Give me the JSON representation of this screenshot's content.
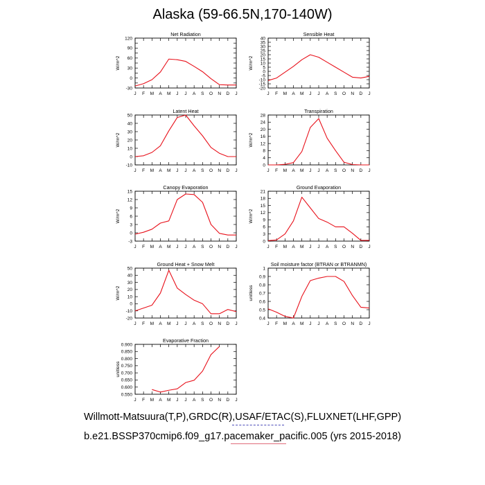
{
  "title": "Alaska (59-66.5N,170-140W)",
  "footer_line1": "Willmott-Matsuura(T,P),GRDC(R),USAF/ETAC(S),FLUXNET(LHF,GPP)",
  "footer_line2": "b.e21.BSSP370cmip6.f09_g17.pacemaker_pacific.005 (yrs 2015-2018)",
  "line_color": "#e8101a",
  "months": [
    "J",
    "F",
    "M",
    "A",
    "M",
    "J",
    "J",
    "A",
    "S",
    "O",
    "N",
    "D",
    "J"
  ],
  "chart_data": [
    {
      "type": "line",
      "title": "Net Radiation",
      "ylabel": "W/m^2",
      "ylim": [
        -30,
        120
      ],
      "yticks": [
        -30,
        -15,
        0,
        15,
        30,
        45,
        60,
        75,
        90,
        105,
        120
      ],
      "yticklabels": [
        "-30",
        "",
        "0",
        "",
        "30",
        "",
        "60",
        "",
        "90",
        "",
        "120"
      ],
      "values": [
        -24,
        -17,
        -5,
        18,
        57,
        55,
        50,
        35,
        19,
        -2,
        -20,
        -21,
        -21
      ]
    },
    {
      "type": "line",
      "title": "Sensible Heat",
      "ylabel": "W/m^2",
      "ylim": [
        -20,
        40
      ],
      "yticks": [
        -20,
        -15,
        -10,
        -5,
        0,
        5,
        10,
        15,
        20,
        25,
        30,
        35,
        40
      ],
      "yticklabels": [
        "-20",
        "-15",
        "-10",
        "-5",
        "0",
        "5",
        "10",
        "15",
        "20",
        "25",
        "30",
        "35",
        "40"
      ],
      "values": [
        -11,
        -8,
        -1,
        6,
        14,
        20,
        17,
        11,
        5,
        -1,
        -7,
        -8,
        -6
      ]
    },
    {
      "type": "line",
      "title": "Latent Heat",
      "ylabel": "W/m^2",
      "ylim": [
        -10,
        50
      ],
      "yticks": [
        -10,
        0,
        10,
        20,
        30,
        40,
        50
      ],
      "yticklabels": [
        "-10",
        "0",
        "10",
        "20",
        "30",
        "40",
        "50"
      ],
      "values": [
        0,
        1,
        5,
        13,
        31,
        47,
        50,
        37,
        25,
        11,
        4,
        0,
        0
      ]
    },
    {
      "type": "line",
      "title": "Transpiration",
      "ylabel": "W/m^2",
      "ylim": [
        0,
        28
      ],
      "yticks": [
        0,
        4,
        8,
        12,
        16,
        20,
        24,
        28
      ],
      "yticklabels": [
        "0",
        "4",
        "8",
        "12",
        "16",
        "20",
        "24",
        "28"
      ],
      "values": [
        0,
        0,
        0.3,
        1.3,
        7.5,
        21,
        26,
        15,
        8,
        1.5,
        0.2,
        0,
        0
      ]
    },
    {
      "type": "line",
      "title": "Canopy Evaporation",
      "ylabel": "W/m^2",
      "ylim": [
        -3,
        15
      ],
      "yticks": [
        -3,
        0,
        3,
        6,
        9,
        12,
        15
      ],
      "yticklabels": [
        "-3",
        "0",
        "3",
        "6",
        "9",
        "12",
        "15"
      ],
      "values": [
        -0.5,
        0.2,
        1.3,
        3.5,
        4.3,
        12,
        14,
        13.8,
        11,
        3,
        -0.2,
        -0.8,
        -0.8
      ]
    },
    {
      "type": "line",
      "title": "Ground Evaporation",
      "ylabel": "W/m^2",
      "ylim": [
        0,
        21
      ],
      "yticks": [
        0,
        3,
        6,
        9,
        12,
        15,
        18,
        21
      ],
      "yticklabels": [
        "0",
        "3",
        "6",
        "9",
        "12",
        "15",
        "18",
        "21"
      ],
      "values": [
        0.2,
        0.5,
        3,
        8.5,
        18.5,
        14,
        9.5,
        8,
        6,
        6,
        3.3,
        0.3,
        0.3
      ]
    },
    {
      "type": "line",
      "title": "Ground Heat + Snow Melt",
      "ylabel": "W/m^2",
      "ylim": [
        -20,
        50
      ],
      "yticks": [
        -20,
        -10,
        0,
        10,
        20,
        30,
        40,
        50
      ],
      "yticklabels": [
        "-20",
        "-10",
        "0",
        "10",
        "20",
        "30",
        "40",
        "50"
      ],
      "values": [
        -10,
        -6,
        -2,
        15,
        47,
        22,
        13,
        5,
        0,
        -14,
        -14,
        -8,
        -11
      ]
    },
    {
      "type": "line",
      "title": "Soil moisture factor (BTRAN or BTRANMN)",
      "ylabel": "unitless",
      "ylim": [
        0.4,
        1.0
      ],
      "yticks": [
        0.4,
        0.5,
        0.6,
        0.7,
        0.8,
        0.9,
        1.0
      ],
      "yticklabels": [
        "0.4",
        "0.5",
        "0.6",
        "0.7",
        "0.8",
        "0.9",
        "1"
      ],
      "values": [
        0.51,
        0.47,
        0.42,
        0.4,
        0.66,
        0.85,
        0.88,
        0.9,
        0.9,
        0.84,
        0.67,
        0.53,
        0.52
      ]
    },
    {
      "type": "line",
      "title": "Evaporative Fraction",
      "ylabel": "unitless",
      "ylim": [
        0.55,
        0.9
      ],
      "yticks": [
        0.55,
        0.6,
        0.65,
        0.7,
        0.75,
        0.8,
        0.85,
        0.9
      ],
      "yticklabels": [
        "0.550",
        "0.600",
        "0.650",
        "0.700",
        "0.750",
        "0.800",
        "0.850",
        "0.900"
      ],
      "values": [
        null,
        null,
        0.583,
        0.565,
        0.578,
        0.588,
        0.632,
        0.648,
        0.712,
        0.828,
        0.885,
        null,
        null
      ]
    }
  ]
}
